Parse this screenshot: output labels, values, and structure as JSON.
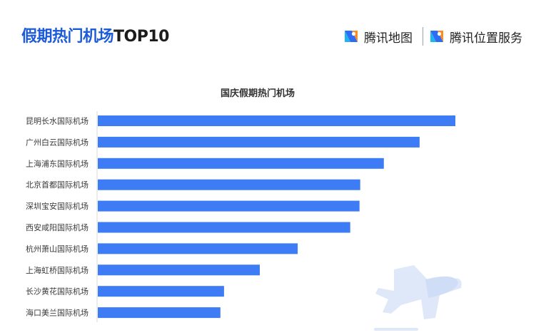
{
  "header": {
    "title_cn": "假期热门机场",
    "title_en": "TOP10",
    "brand_map": "腾讯地图",
    "brand_lbs": "腾讯位置服务"
  },
  "colors": {
    "title": "#1d5bd8",
    "bar": "#3d7cf5",
    "text": "#3a3a3a"
  },
  "chart_data": {
    "type": "bar",
    "orientation": "horizontal",
    "title": "国庆假期热门机场",
    "categories": [
      "昆明长水国际机场",
      "广州白云国际机场",
      "上海浦东国际机场",
      "北京首都国际机场",
      "深圳宝安国际机场",
      "西安咸阳国际机场",
      "杭州萧山国际机场",
      "上海虹桥国际机场",
      "长沙黄花国际机场",
      "海口美兰国际机场"
    ],
    "values": [
      100,
      90,
      80,
      73.4,
      73.2,
      70.6,
      55.9,
      45.3,
      35.3,
      34.3
    ],
    "xlim": [
      0,
      100
    ],
    "grid": false,
    "axis_values_shown": false
  }
}
